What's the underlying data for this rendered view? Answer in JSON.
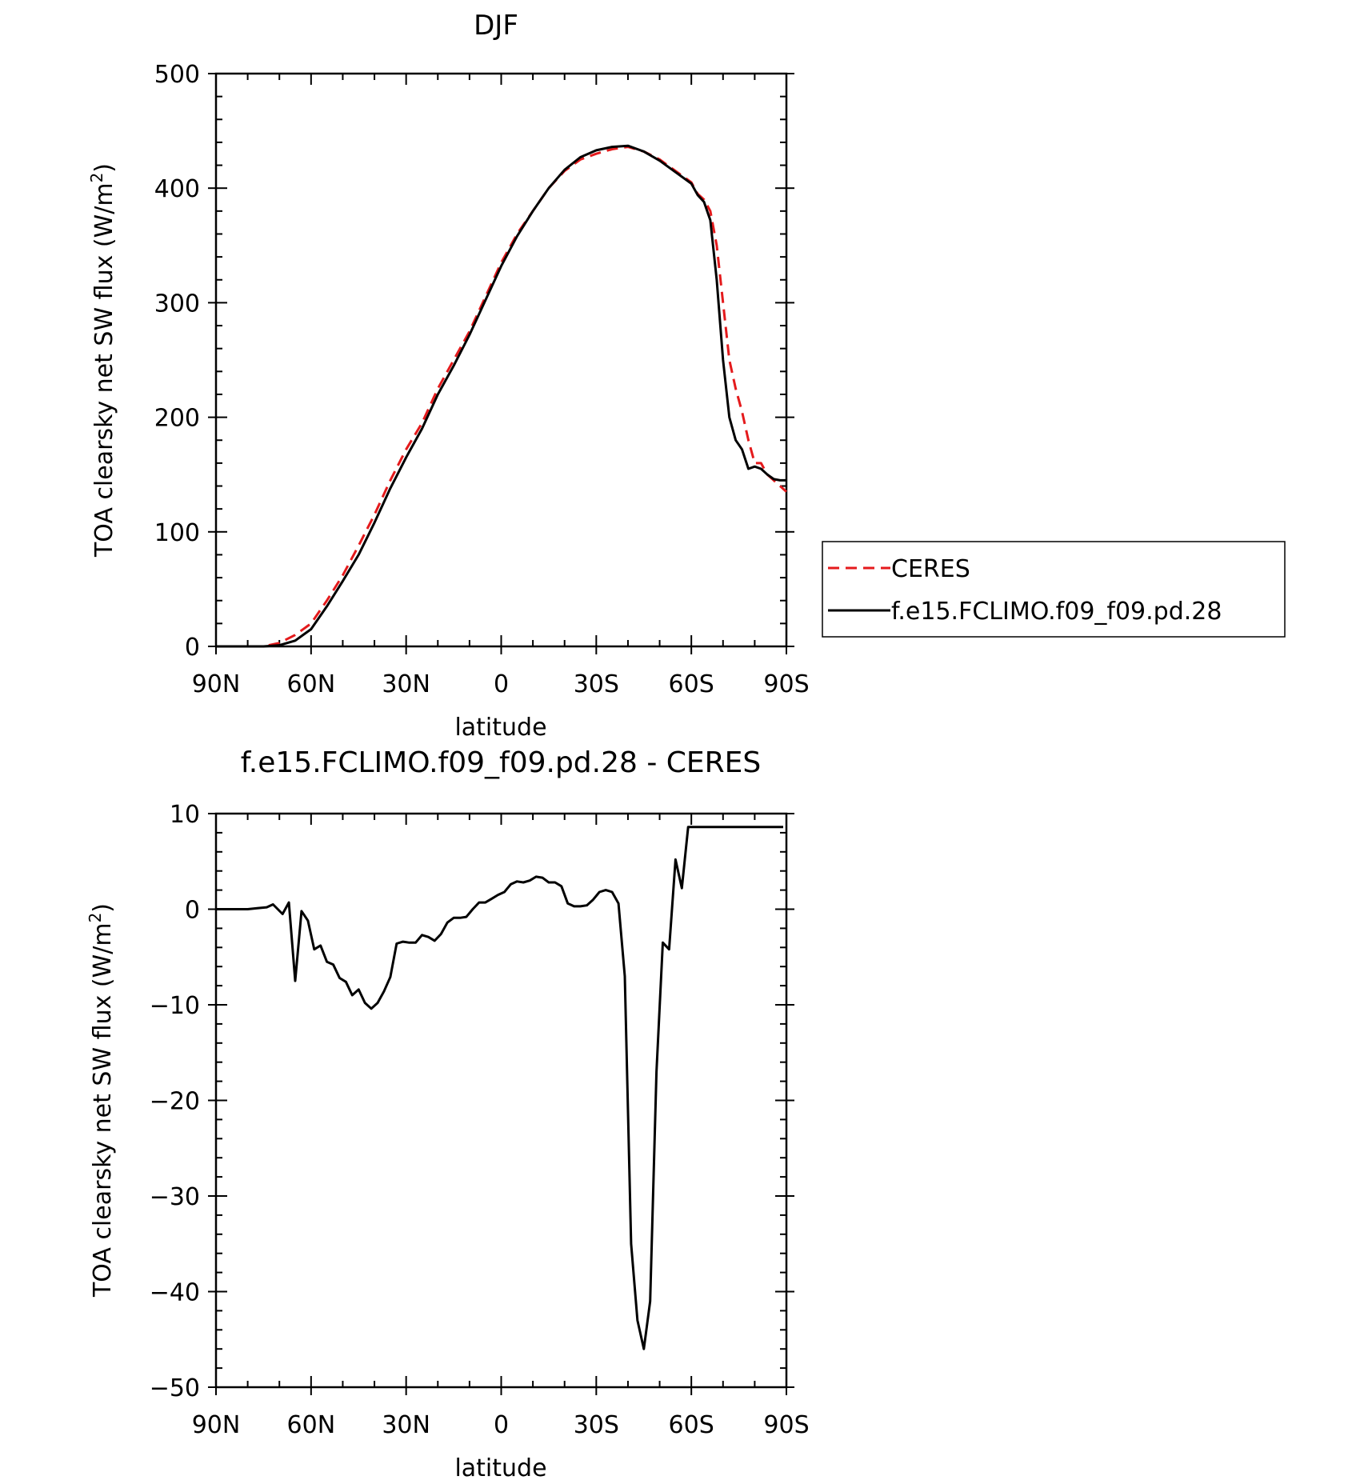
{
  "chart_data": [
    {
      "type": "line",
      "title": "DJF",
      "xlabel": "latitude",
      "ylabel_main": "TOA clearsky net SW flux (W/m",
      "ylabel_sup": "2",
      "ylabel_close": ")",
      "xlim": [
        90,
        -90
      ],
      "ylim": [
        0,
        500
      ],
      "x_ticks": [
        {
          "value": 90,
          "label": "90N"
        },
        {
          "value": 60,
          "label": "60N"
        },
        {
          "value": 30,
          "label": "30N"
        },
        {
          "value": 0,
          "label": "0"
        },
        {
          "value": -30,
          "label": "30S"
        },
        {
          "value": -60,
          "label": "60S"
        },
        {
          "value": -90,
          "label": "90S"
        }
      ],
      "y_ticks": [
        0,
        100,
        200,
        300,
        400,
        500
      ],
      "series": [
        {
          "name": "CERES",
          "color": "#e41a1c",
          "dash": "dashed",
          "x": [
            90,
            85,
            80,
            75,
            70,
            65,
            60,
            55,
            50,
            45,
            40,
            35,
            30,
            25,
            20,
            15,
            10,
            5,
            0,
            -5,
            -10,
            -15,
            -20,
            -25,
            -30,
            -35,
            -40,
            -45,
            -50,
            -55,
            -60,
            -62,
            -64,
            -66,
            -68,
            -70,
            -72,
            -74,
            -76,
            -78,
            -80,
            -82,
            -84,
            -86,
            -88,
            -90
          ],
          "values": [
            0,
            0,
            0,
            0,
            3,
            10,
            20,
            40,
            62,
            88,
            115,
            145,
            172,
            195,
            225,
            250,
            275,
            305,
            335,
            360,
            380,
            400,
            415,
            425,
            430,
            434,
            436,
            432,
            425,
            415,
            405,
            395,
            390,
            380,
            350,
            300,
            250,
            225,
            205,
            180,
            160,
            160,
            150,
            145,
            140,
            135
          ]
        },
        {
          "name": "f.e15.FCLIMO.f09_f09.pd.28",
          "color": "#000000",
          "dash": "solid",
          "x": [
            90,
            85,
            80,
            75,
            70,
            65,
            60,
            55,
            50,
            45,
            40,
            35,
            30,
            25,
            20,
            15,
            10,
            5,
            0,
            -5,
            -10,
            -15,
            -20,
            -25,
            -30,
            -35,
            -40,
            -45,
            -50,
            -55,
            -60,
            -62,
            -64,
            -66,
            -68,
            -70,
            -72,
            -74,
            -76,
            -78,
            -80,
            -82,
            -84,
            -86,
            -88,
            -90
          ],
          "values": [
            0,
            0,
            0,
            0,
            1,
            5,
            15,
            35,
            57,
            80,
            108,
            138,
            165,
            190,
            220,
            245,
            272,
            302,
            332,
            358,
            380,
            400,
            416,
            427,
            433,
            436,
            437,
            432,
            424,
            414,
            404,
            394,
            388,
            372,
            320,
            250,
            200,
            180,
            172,
            155,
            157,
            155,
            150,
            146,
            145,
            145
          ]
        }
      ],
      "legend": "right",
      "grid": false
    },
    {
      "type": "line",
      "title": "f.e15.FCLIMO.f09_f09.pd.28 - CERES",
      "xlabel": "latitude",
      "ylabel_main": "TOA clearsky net SW flux (W/m",
      "ylabel_sup": "2",
      "ylabel_close": ")",
      "xlim": [
        90,
        -90
      ],
      "ylim": [
        -50,
        10
      ],
      "x_ticks": [
        {
          "value": 90,
          "label": "90N"
        },
        {
          "value": 60,
          "label": "60N"
        },
        {
          "value": 30,
          "label": "30N"
        },
        {
          "value": 0,
          "label": "0"
        },
        {
          "value": -30,
          "label": "30S"
        },
        {
          "value": -60,
          "label": "60S"
        },
        {
          "value": -90,
          "label": "90S"
        }
      ],
      "y_ticks": [
        {
          "value": 10,
          "label": "10"
        },
        {
          "value": 0,
          "label": "0"
        },
        {
          "value": -10,
          "label": "−10"
        },
        {
          "value": -20,
          "label": "−20"
        },
        {
          "value": -30,
          "label": "−30"
        },
        {
          "value": -40,
          "label": "−40"
        },
        {
          "value": -50,
          "label": "−50"
        }
      ],
      "series": [
        {
          "name": "",
          "color": "#000000",
          "dash": "solid",
          "x": [
            90,
            85,
            80,
            77,
            74,
            72,
            69,
            67,
            65,
            63,
            61,
            59,
            57,
            55,
            53,
            51,
            49,
            47,
            45,
            43,
            41,
            39,
            37,
            35,
            33,
            31,
            29,
            27,
            25,
            23,
            21,
            19,
            17,
            15,
            13,
            11,
            9,
            7,
            5,
            3,
            1,
            -1,
            -3,
            -5,
            -7,
            -9,
            -11,
            -13,
            -15,
            -17,
            -19,
            -21,
            -23,
            -25,
            -27,
            -29,
            -31,
            -33,
            -35,
            -37,
            -39,
            -41,
            -43,
            -45,
            -47,
            -49,
            -51,
            -53,
            -55,
            -57,
            -59,
            -61,
            -63,
            -65,
            -67,
            -69,
            -71,
            -73,
            -75,
            -77,
            -79,
            -81,
            -83,
            -85,
            -87,
            -89
          ],
          "values": [
            0,
            0,
            0,
            0.1,
            0.2,
            0.5,
            -0.5,
            0.7,
            -7.5,
            -0.2,
            -1.2,
            -4.2,
            -3.8,
            -5.5,
            -5.8,
            -7.2,
            -7.6,
            -9,
            -8.4,
            -9.8,
            -10.4,
            -9.8,
            -8.6,
            -7.1,
            -3.6,
            -3.4,
            -3.5,
            -3.5,
            -2.7,
            -2.9,
            -3.3,
            -2.6,
            -1.4,
            -0.9,
            -0.9,
            -0.8,
            0,
            0.7,
            0.7,
            1.1,
            1.5,
            1.8,
            2.6,
            2.9,
            2.8,
            3.0,
            3.4,
            3.3,
            2.8,
            2.8,
            2.4,
            0.6,
            0.3,
            0.3,
            0.4,
            1.0,
            1.8,
            2.0,
            1.8,
            0.6,
            -7,
            -35,
            -43,
            -46,
            -41,
            -17,
            -3.5,
            -4.2,
            5.2,
            2.2,
            8.6,
            8.6,
            8.6,
            8.6,
            8.6,
            8.6,
            8.6,
            8.6,
            8.6,
            8.6,
            8.6,
            8.6,
            8.6,
            8.6,
            8.6,
            8.6
          ]
        }
      ],
      "grid": false
    }
  ]
}
